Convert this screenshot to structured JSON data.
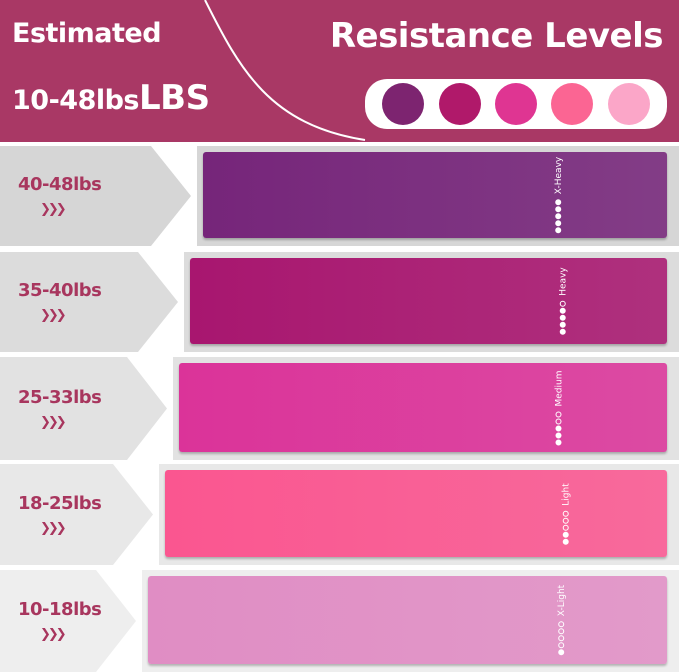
{
  "header": {
    "line1": "Estimated",
    "range": "10-48lbs",
    "unit": "LBS",
    "title": "Resistance Levels",
    "swatches": [
      "#7d2470",
      "#b0196a",
      "#df3592",
      "#fb6593",
      "#fba6c8"
    ]
  },
  "rows": [
    {
      "weight": "40-48lbs",
      "arrows": "❯❯❯",
      "level": "X-Heavy",
      "filled": 5,
      "color": "#76257a"
    },
    {
      "weight": "35-40lbs",
      "arrows": "❯❯❯",
      "level": "Heavy",
      "filled": 4,
      "color": "#a8166f"
    },
    {
      "weight": "25-33lbs",
      "arrows": "❯❯❯",
      "level": "Medium",
      "filled": 3,
      "color": "#db3399"
    },
    {
      "weight": "18-25lbs",
      "arrows": "❯❯❯",
      "level": "Light",
      "filled": 2,
      "color": "#fa5690"
    },
    {
      "weight": "10-18lbs",
      "arrows": "❯❯❯",
      "level": "X-Light",
      "filled": 1,
      "color": "#e08dc4"
    }
  ]
}
